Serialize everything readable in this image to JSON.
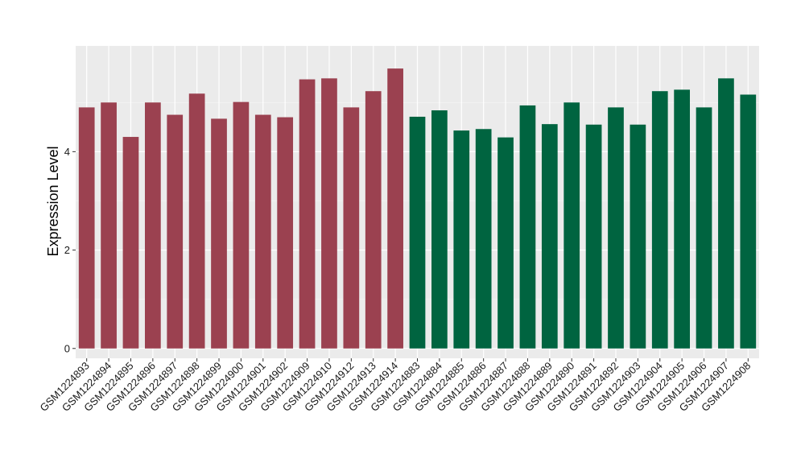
{
  "chart_data": {
    "type": "bar",
    "title": "",
    "xlabel": "",
    "ylabel": "Expression Level",
    "ylim": [
      -0.2,
      6.15
    ],
    "yticks": [
      0,
      2,
      4
    ],
    "grid": true,
    "legend": "none",
    "colors": {
      "panel_background": "#ebebeb",
      "grid_major": "#ffffff",
      "group_1": "#9b4150",
      "group_2": "#006440"
    },
    "categories": [
      "GSM1224893",
      "GSM1224894",
      "GSM1224895",
      "GSM1224896",
      "GSM1224897",
      "GSM1224898",
      "GSM1224899",
      "GSM1224900",
      "GSM1224901",
      "GSM1224902",
      "GSM1224909",
      "GSM1224910",
      "GSM1224912",
      "GSM1224913",
      "GSM1224914",
      "GSM1224883",
      "GSM1224884",
      "GSM1224885",
      "GSM1224886",
      "GSM1224887",
      "GSM1224888",
      "GSM1224889",
      "GSM1224890",
      "GSM1224891",
      "GSM1224892",
      "GSM1224903",
      "GSM1224904",
      "GSM1224905",
      "GSM1224906",
      "GSM1224907",
      "GSM1224908"
    ],
    "values": [
      4.9,
      5.0,
      4.3,
      5.0,
      4.75,
      5.18,
      4.67,
      5.01,
      4.75,
      4.7,
      5.47,
      5.49,
      4.9,
      5.23,
      5.69,
      4.71,
      4.84,
      4.43,
      4.46,
      4.29,
      4.94,
      4.56,
      5.0,
      4.55,
      4.9,
      4.55,
      5.23,
      5.26,
      4.9,
      5.49,
      5.16
    ],
    "groups": [
      1,
      1,
      1,
      1,
      1,
      1,
      1,
      1,
      1,
      1,
      1,
      1,
      1,
      1,
      1,
      2,
      2,
      2,
      2,
      2,
      2,
      2,
      2,
      2,
      2,
      2,
      2,
      2,
      2,
      2,
      2
    ]
  }
}
